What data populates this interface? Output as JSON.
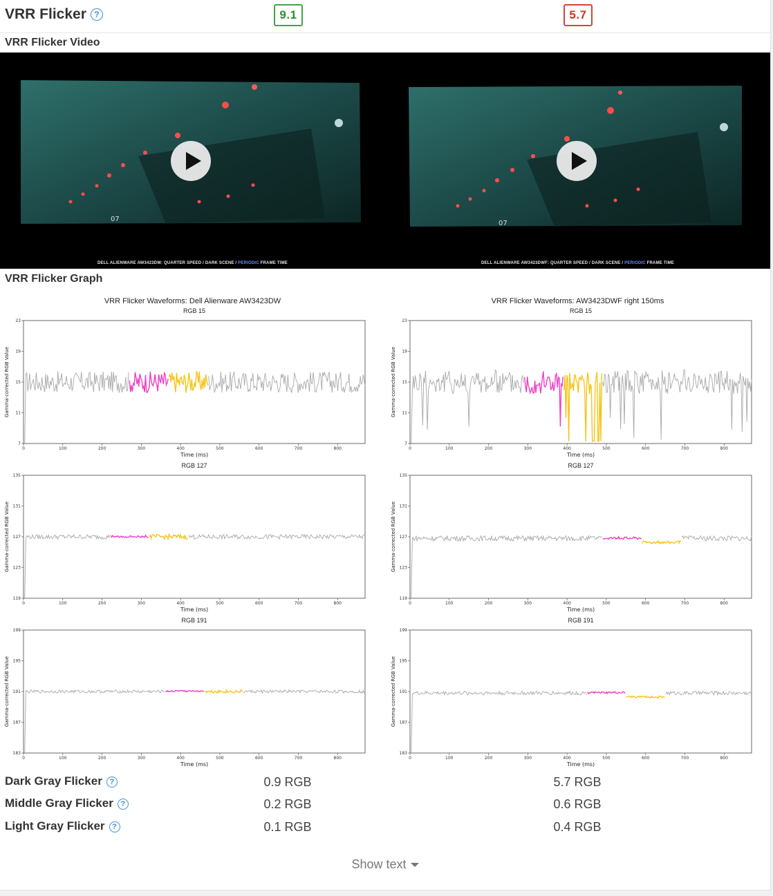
{
  "header": {
    "title": "VRR Flicker",
    "score_left": "9.1",
    "score_right": "5.7"
  },
  "video_section": {
    "label": "VRR Flicker Video",
    "left_caption_a": "DELL ALIENWARE AW3423DW: QUARTER SPEED / DARK SCENE / ",
    "left_caption_hl": "PERIODIC",
    "left_caption_b": " FRAME TIME",
    "right_caption_a": "DELL ALIENWARE AW3423DWF: QUARTER SPEED / DARK SCENE / ",
    "right_caption_hl": "PERIODIC",
    "right_caption_b": " FRAME TIME"
  },
  "graph_section": {
    "label": "VRR Flicker Graph",
    "left_title": "VRR Flicker Waveforms: Dell Alienware AW3423DW",
    "right_title": "VRR Flicker Waveforms: AW3423DWF right 150ms"
  },
  "chart_data": [
    {
      "type": "line",
      "panel": "left",
      "title": "RGB 15",
      "xlabel": "Time (ms)",
      "ylabel": "Gamma-corrected RGB Value",
      "xlim": [
        0,
        870
      ],
      "ylim": [
        7,
        23
      ],
      "yticks": [
        7,
        11,
        15,
        19,
        23
      ],
      "xticks": [
        0,
        100,
        200,
        300,
        400,
        500,
        600,
        700,
        800
      ],
      "base": 15,
      "amp": 1.4,
      "dips": 0,
      "highlight_magenta": [
        270,
        370
      ],
      "highlight_yellow": [
        370,
        470
      ]
    },
    {
      "type": "line",
      "panel": "right",
      "title": "RGB 15",
      "xlabel": "Time (ms)",
      "ylabel": "Gamma-corrected RGB Value",
      "xlim": [
        0,
        870
      ],
      "ylim": [
        7,
        23
      ],
      "yticks": [
        7,
        11,
        15,
        19,
        23
      ],
      "xticks": [
        0,
        100,
        200,
        300,
        400,
        500,
        600,
        700,
        800
      ],
      "base": 15,
      "amp": 1.6,
      "dips": 1,
      "highlight_magenta": [
        290,
        390
      ],
      "highlight_yellow": [
        390,
        490
      ]
    },
    {
      "type": "line",
      "panel": "left",
      "title": "RGB 127",
      "xlabel": "Time (ms)",
      "ylabel": "Gamma-corrected RGB Value",
      "xlim": [
        0,
        870
      ],
      "ylim": [
        119,
        135
      ],
      "yticks": [
        119,
        123,
        127,
        131,
        135
      ],
      "xticks": [
        0,
        100,
        200,
        300,
        400,
        500,
        600,
        700,
        800
      ],
      "base": 127,
      "amp": 0.3,
      "dips": 0,
      "highlight_magenta": [
        220,
        320
      ],
      "highlight_yellow": [
        320,
        420
      ]
    },
    {
      "type": "line",
      "panel": "right",
      "title": "RGB 127",
      "xlabel": "Time (ms)",
      "ylabel": "Gamma-corrected RGB Value",
      "xlim": [
        0,
        870
      ],
      "ylim": [
        119,
        135
      ],
      "yticks": [
        119,
        123,
        127,
        131,
        135
      ],
      "xticks": [
        0,
        100,
        200,
        300,
        400,
        500,
        600,
        700,
        800
      ],
      "base": 126.8,
      "amp": 0.35,
      "dips": 0,
      "highlight_magenta": [
        490,
        590
      ],
      "highlight_yellow": [
        590,
        690
      ]
    },
    {
      "type": "line",
      "panel": "left",
      "title": "RGB 191",
      "xlabel": "Time (ms)",
      "ylabel": "Gamma-corrected RGB Value",
      "xlim": [
        0,
        870
      ],
      "ylim": [
        183,
        199
      ],
      "yticks": [
        183,
        187,
        191,
        195,
        199
      ],
      "xticks": [
        0,
        100,
        200,
        300,
        400,
        500,
        600,
        700,
        800
      ],
      "base": 191,
      "amp": 0.2,
      "dips": 0,
      "highlight_magenta": [
        360,
        460
      ],
      "highlight_yellow": [
        460,
        560
      ]
    },
    {
      "type": "line",
      "panel": "right",
      "title": "RGB 191",
      "xlabel": "Time (ms)",
      "ylabel": "Gamma-corrected RGB Value",
      "xlim": [
        0,
        870
      ],
      "ylim": [
        183,
        199
      ],
      "yticks": [
        183,
        187,
        191,
        195,
        199
      ],
      "xticks": [
        0,
        100,
        200,
        300,
        400,
        500,
        600,
        700,
        800
      ],
      "base": 190.8,
      "amp": 0.25,
      "dips": 0,
      "highlight_magenta": [
        450,
        550
      ],
      "highlight_yellow": [
        550,
        650
      ]
    }
  ],
  "metrics": [
    {
      "label": "Dark Gray Flicker",
      "left": "0.9 RGB",
      "right": "5.7 RGB"
    },
    {
      "label": "Middle Gray Flicker",
      "left": "0.2 RGB",
      "right": "0.6 RGB"
    },
    {
      "label": "Light Gray Flicker",
      "left": "0.1 RGB",
      "right": "0.4 RGB"
    }
  ],
  "show_text": "Show text",
  "colors": {
    "good": "#3fa63f",
    "bad": "#d2472f",
    "magenta": "#ee3fc4",
    "yellow": "#f4c518",
    "trace": "#a8a8a8",
    "help": "#3d8fd6"
  },
  "icons": {
    "help": "question-circle-icon",
    "play": "play-icon",
    "caret": "caret-down-icon"
  }
}
